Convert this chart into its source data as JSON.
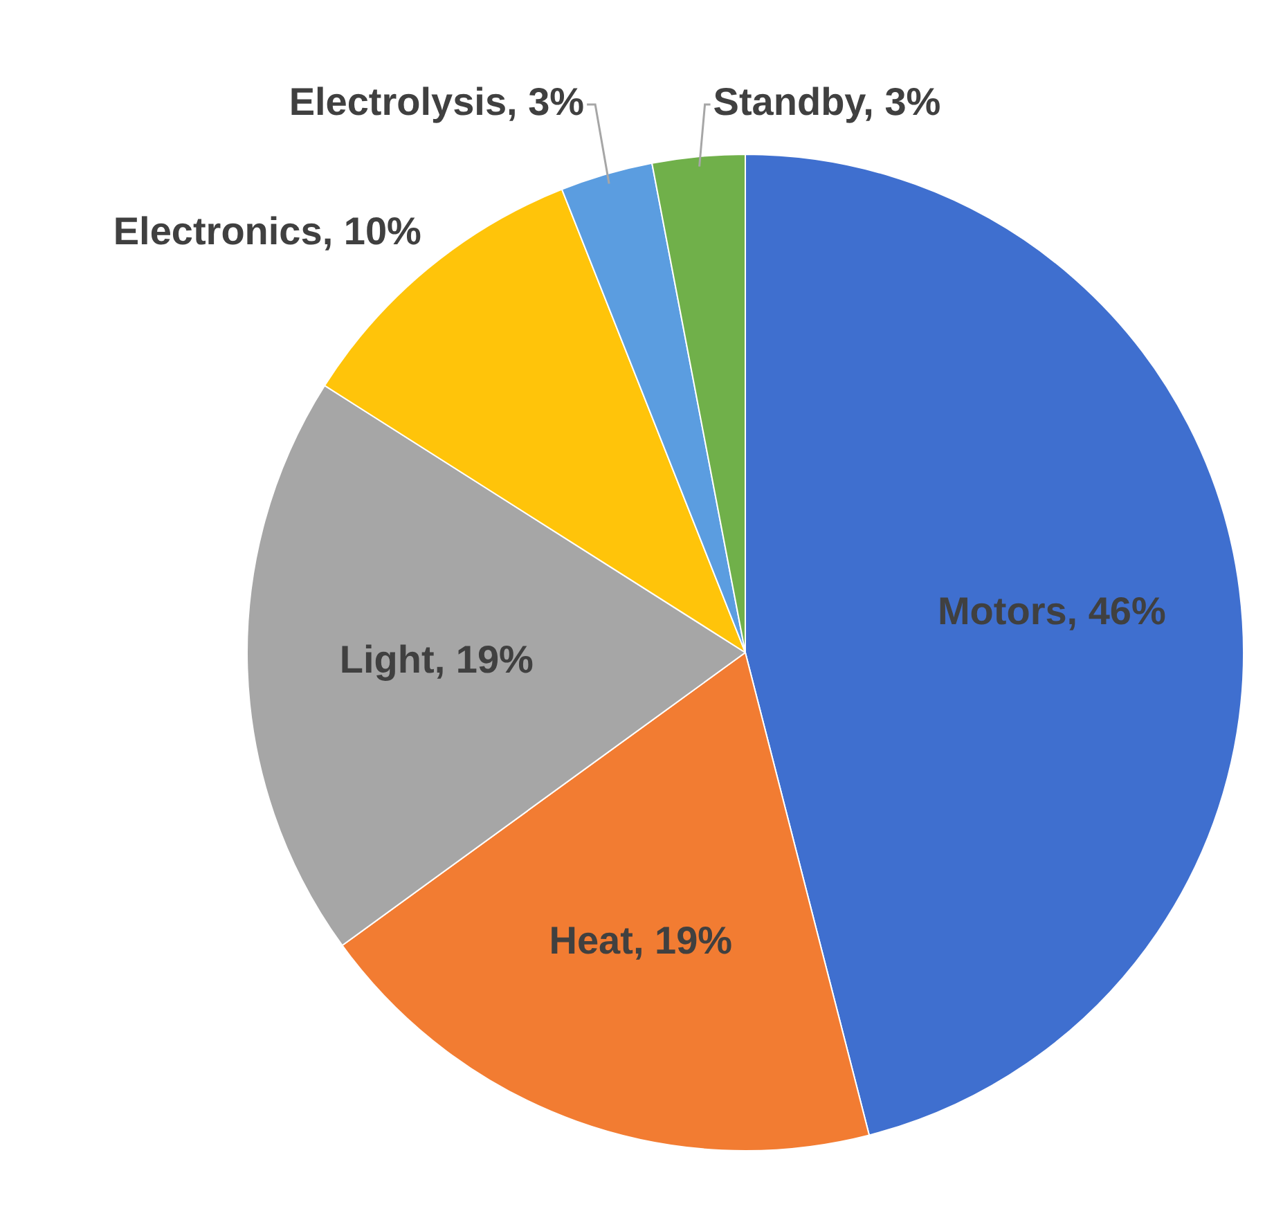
{
  "chart_data": {
    "type": "pie",
    "categories": [
      "Motors",
      "Heat",
      "Light",
      "Electronics",
      "Electrolysis",
      "Standby"
    ],
    "values": [
      46,
      19,
      19,
      10,
      3,
      3
    ],
    "colors": [
      "#3f6fcf",
      "#f27c32",
      "#a6a6a6",
      "#ffc40a",
      "#5b9de0",
      "#70b04a"
    ],
    "value_labels": [
      "46%",
      "19%",
      "19%",
      "10%",
      "3%",
      "3%"
    ],
    "legend": false
  }
}
